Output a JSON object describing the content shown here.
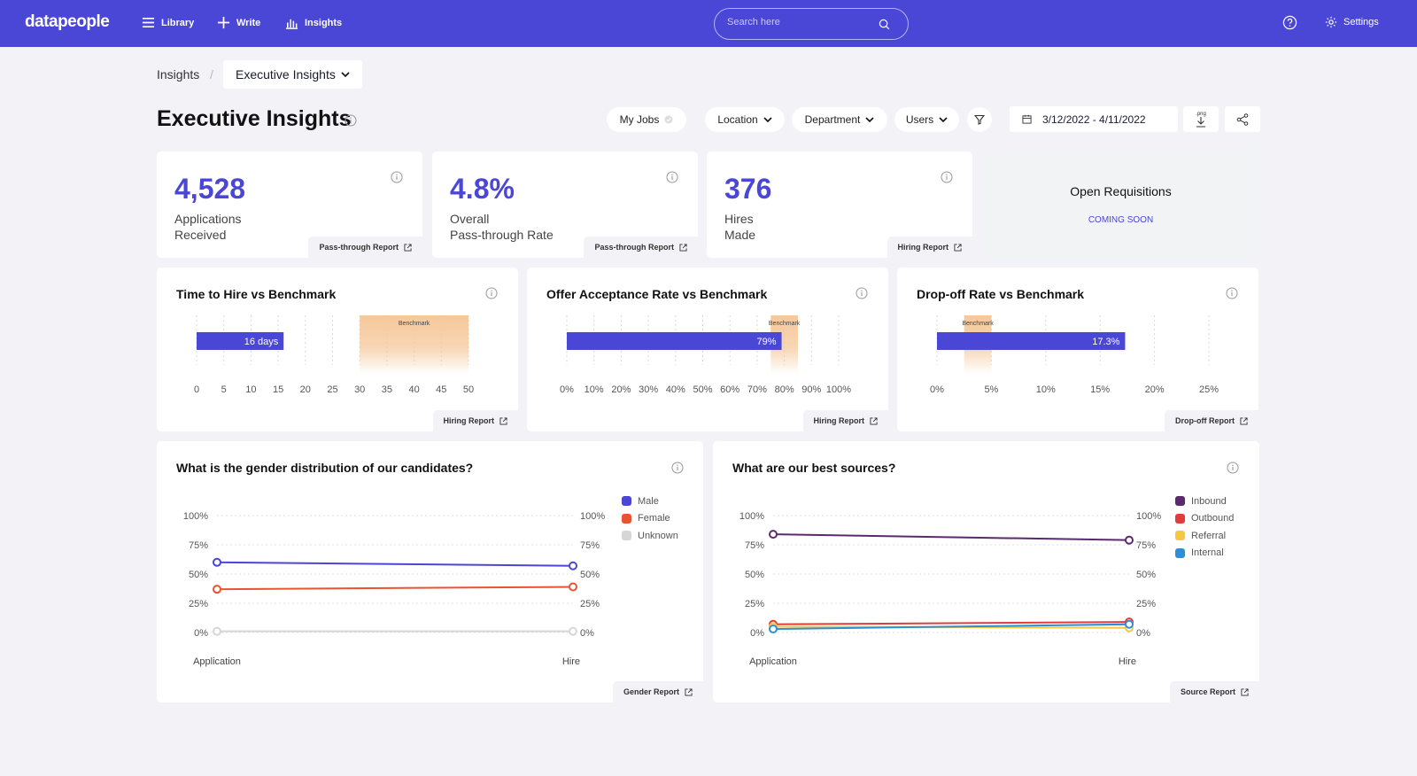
{
  "app": {
    "logo": "datapeople",
    "nav": [
      {
        "label": "Library"
      },
      {
        "label": "Write"
      },
      {
        "label": "Insights"
      }
    ],
    "search_placeholder": "Search here",
    "settings_label": "Settings"
  },
  "breadcrumb": {
    "root": "Insights",
    "separator": "/",
    "current": "Executive Insights"
  },
  "page": {
    "title": "Executive Insights"
  },
  "filters": {
    "my_jobs": "My Jobs",
    "location": "Location",
    "department": "Department",
    "users": "Users",
    "date_range": "3/12/2022 - 4/11/2022",
    "png_label": ".png"
  },
  "kpis": [
    {
      "value": "4,528",
      "label_line1": "Applications",
      "label_line2": "Received",
      "report": "Pass-through Report"
    },
    {
      "value": "4.8%",
      "label_line1": "Overall",
      "label_line2": "Pass-through Rate",
      "report": "Pass-through Report"
    },
    {
      "value": "376",
      "label_line1": "Hires",
      "label_line2": "Made",
      "report": "Hiring Report"
    }
  ],
  "open_requisitions": {
    "title": "Open Requisitions",
    "status": "COMING SOON"
  },
  "colors": {
    "brand": "#4a46d6",
    "benchmark": "#f5c89a"
  },
  "chart_data": [
    {
      "type": "bar",
      "title": "Time to Hire vs Benchmark",
      "value": 16,
      "value_label": "16 days",
      "benchmark_label": "Benchmark",
      "benchmark_range": [
        30,
        50
      ],
      "xlim": [
        0,
        50
      ],
      "ticks": [
        0,
        5,
        10,
        15,
        20,
        25,
        30,
        35,
        40,
        45,
        50
      ],
      "tick_labels": [
        "0",
        "5",
        "10",
        "15",
        "20",
        "25",
        "30",
        "35",
        "40",
        "45",
        "50"
      ],
      "report": "Hiring Report"
    },
    {
      "type": "bar",
      "title": "Offer Acceptance Rate vs Benchmark",
      "value": 79,
      "value_label": "79%",
      "benchmark_label": "Benchmark",
      "benchmark_range": [
        75,
        85
      ],
      "xlim": [
        0,
        100
      ],
      "ticks": [
        0,
        10,
        20,
        30,
        40,
        50,
        60,
        70,
        80,
        90,
        100
      ],
      "tick_labels": [
        "0%",
        "10%",
        "20%",
        "30%",
        "40%",
        "50%",
        "60%",
        "70%",
        "80%",
        "90%",
        "100%"
      ],
      "report": "Hiring Report"
    },
    {
      "type": "bar",
      "title": "Drop-off Rate vs Benchmark",
      "value": 17.3,
      "value_label": "17.3%",
      "benchmark_label": "Benchmark",
      "benchmark_range": [
        2.5,
        5
      ],
      "xlim": [
        0,
        25
      ],
      "ticks": [
        0,
        5,
        10,
        15,
        20,
        25
      ],
      "tick_labels": [
        "0%",
        "5%",
        "10%",
        "15%",
        "20%",
        "25%"
      ],
      "report": "Drop-off Report"
    },
    {
      "type": "line",
      "title": "What is the gender distribution of our candidates?",
      "categories": [
        "Application",
        "Hire"
      ],
      "ylim": [
        0,
        100
      ],
      "yticks": [
        0,
        25,
        50,
        75,
        100
      ],
      "ytick_labels": [
        "0%",
        "25%",
        "50%",
        "75%",
        "100%"
      ],
      "series": [
        {
          "name": "Male",
          "values": [
            60,
            57
          ],
          "color": "#4a46d6"
        },
        {
          "name": "Female",
          "values": [
            37,
            39
          ],
          "color": "#e8542f"
        },
        {
          "name": "Unknown",
          "values": [
            1,
            1
          ],
          "color": "#d6d6d6"
        }
      ],
      "report": "Gender Report"
    },
    {
      "type": "line",
      "title": "What are our best sources?",
      "categories": [
        "Application",
        "Hire"
      ],
      "ylim": [
        0,
        100
      ],
      "yticks": [
        0,
        25,
        50,
        75,
        100
      ],
      "ytick_labels": [
        "0%",
        "25%",
        "50%",
        "75%",
        "100%"
      ],
      "series": [
        {
          "name": "Inbound",
          "values": [
            84,
            79
          ],
          "color": "#5b2a6e"
        },
        {
          "name": "Outbound",
          "values": [
            7,
            9
          ],
          "color": "#e03c3c"
        },
        {
          "name": "Referral",
          "values": [
            5,
            4
          ],
          "color": "#f5c842"
        },
        {
          "name": "Internal",
          "values": [
            3,
            7
          ],
          "color": "#2d8fd6"
        }
      ],
      "report": "Source Report"
    }
  ]
}
